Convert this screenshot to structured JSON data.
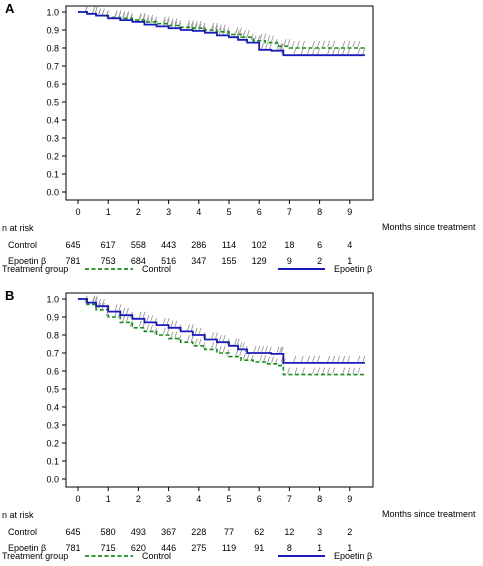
{
  "colors": {
    "control": "#1a8a1a",
    "epoetin": "#1a1ab8",
    "censor": "#9a9a9a",
    "axis": "#000000"
  },
  "risk_header": "n at risk",
  "treatment_group_label": "Treatment group",
  "chart_data": [
    {
      "type": "line",
      "panel_label": "A",
      "xlabel": "Months since treatment",
      "ylabel": "",
      "xlim": [
        -0.3,
        9.8
      ],
      "ylim": [
        0,
        1.03
      ],
      "x_ticks": [
        "0",
        "1",
        "2",
        "3",
        "4",
        "5",
        "6",
        "7",
        "8",
        "9"
      ],
      "y_ticks": [
        "0.0",
        "0.1",
        "0.2",
        "0.3",
        "0.4",
        "0.5",
        "0.6",
        "0.7",
        "0.8",
        "0.9",
        "1.0"
      ],
      "legend": {
        "position": "bottom",
        "control_label": "Control",
        "epoetin_label": "Epoetin β"
      },
      "series": [
        {
          "name": "Control",
          "style": "dashed",
          "x": [
            0,
            0.3,
            0.6,
            1.0,
            1.4,
            1.8,
            2.2,
            2.6,
            3.0,
            3.4,
            3.8,
            4.2,
            4.6,
            5.0,
            5.4,
            5.8,
            6.2,
            6.6,
            7.0,
            7.5,
            8.0,
            8.5,
            9.0,
            9.5
          ],
          "y": [
            1.0,
            0.99,
            0.98,
            0.97,
            0.965,
            0.955,
            0.945,
            0.935,
            0.925,
            0.915,
            0.91,
            0.9,
            0.89,
            0.875,
            0.86,
            0.84,
            0.83,
            0.81,
            0.8,
            0.8,
            0.8,
            0.8,
            0.8,
            0.8
          ]
        },
        {
          "name": "Epoetin β",
          "style": "solid",
          "x": [
            0,
            0.3,
            0.6,
            1.0,
            1.4,
            1.8,
            2.2,
            2.6,
            3.0,
            3.4,
            3.8,
            4.2,
            4.6,
            5.0,
            5.3,
            5.6,
            6.0,
            6.4,
            6.7,
            6.8,
            7.5,
            8.0,
            8.5,
            9.0,
            9.5
          ],
          "y": [
            1.0,
            0.99,
            0.98,
            0.965,
            0.955,
            0.945,
            0.93,
            0.92,
            0.91,
            0.9,
            0.895,
            0.885,
            0.87,
            0.86,
            0.845,
            0.83,
            0.79,
            0.785,
            0.785,
            0.76,
            0.76,
            0.76,
            0.76,
            0.76,
            0.76
          ]
        }
      ],
      "at_risk": {
        "control": {
          "label": "Control",
          "values": [
            "645",
            "617",
            "558",
            "443",
            "286",
            "114",
            "102",
            "18",
            "6",
            "4"
          ]
        },
        "epoetin": {
          "label": "Epoetin β",
          "values": [
            "781",
            "753",
            "684",
            "516",
            "347",
            "155",
            "129",
            "9",
            "2",
            "1"
          ]
        }
      }
    },
    {
      "type": "line",
      "panel_label": "B",
      "xlabel": "Months since treatment",
      "ylabel": "",
      "xlim": [
        -0.3,
        9.8
      ],
      "ylim": [
        0,
        1.03
      ],
      "x_ticks": [
        "0",
        "1",
        "2",
        "3",
        "4",
        "5",
        "6",
        "7",
        "8",
        "9"
      ],
      "y_ticks": [
        "0.0",
        "0.1",
        "0.2",
        "0.3",
        "0.4",
        "0.5",
        "0.6",
        "0.7",
        "0.8",
        "0.9",
        "1.0"
      ],
      "legend": {
        "position": "bottom",
        "control_label": "Control",
        "epoetin_label": "Epoetin β"
      },
      "series": [
        {
          "name": "Control",
          "style": "dashed",
          "x": [
            0,
            0.3,
            0.6,
            1.0,
            1.4,
            1.8,
            2.2,
            2.6,
            3.0,
            3.4,
            3.8,
            4.2,
            4.6,
            5.0,
            5.4,
            5.8,
            6.2,
            6.6,
            6.8,
            7.5,
            8.0,
            8.5,
            9.0,
            9.5
          ],
          "y": [
            1.0,
            0.97,
            0.94,
            0.9,
            0.87,
            0.84,
            0.82,
            0.8,
            0.78,
            0.76,
            0.74,
            0.72,
            0.7,
            0.68,
            0.66,
            0.65,
            0.64,
            0.63,
            0.58,
            0.58,
            0.58,
            0.58,
            0.58,
            0.58
          ]
        },
        {
          "name": "Epoetin β",
          "style": "solid",
          "x": [
            0,
            0.3,
            0.6,
            1.0,
            1.4,
            1.8,
            2.2,
            2.6,
            3.0,
            3.4,
            3.8,
            4.2,
            4.6,
            5.0,
            5.3,
            5.6,
            6.0,
            6.4,
            6.7,
            6.8,
            7.5,
            8.0,
            8.5,
            9.0,
            9.5
          ],
          "y": [
            1.0,
            0.98,
            0.96,
            0.93,
            0.91,
            0.89,
            0.87,
            0.855,
            0.84,
            0.82,
            0.8,
            0.775,
            0.76,
            0.74,
            0.72,
            0.7,
            0.7,
            0.695,
            0.695,
            0.645,
            0.645,
            0.645,
            0.645,
            0.645,
            0.645
          ]
        }
      ],
      "at_risk": {
        "control": {
          "label": "Control",
          "values": [
            "645",
            "580",
            "493",
            "367",
            "228",
            "77",
            "62",
            "12",
            "3",
            "2"
          ]
        },
        "epoetin": {
          "label": "Epoetin β",
          "values": [
            "781",
            "715",
            "620",
            "446",
            "275",
            "119",
            "91",
            "8",
            "1",
            "1"
          ]
        }
      }
    }
  ]
}
